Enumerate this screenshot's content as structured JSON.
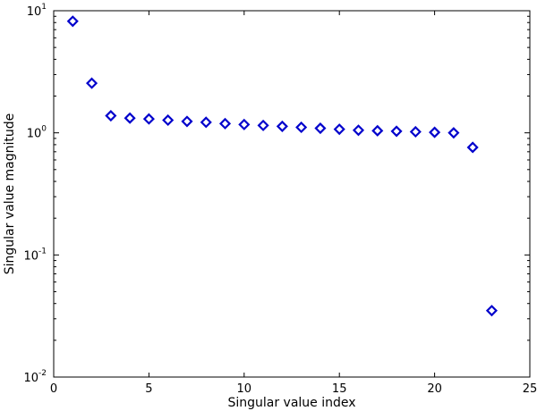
{
  "chart_data": {
    "type": "scatter",
    "title": "",
    "xlabel": "Singular value index",
    "ylabel": "Singular value magnitude",
    "xlim": [
      0,
      25
    ],
    "ylim": [
      0.01,
      10
    ],
    "yscale": "log",
    "grid": false,
    "marker": "diamond",
    "marker_color": "#0000cc",
    "x_ticks": [
      0,
      5,
      10,
      15,
      20,
      25
    ],
    "y_ticks": [
      {
        "value": 10,
        "base": "10",
        "exp": "1"
      },
      {
        "value": 1,
        "base": "10",
        "exp": "0"
      },
      {
        "value": 0.1,
        "base": "10",
        "exp": "-1"
      },
      {
        "value": 0.01,
        "base": "10",
        "exp": "-2"
      }
    ],
    "x": [
      1,
      2,
      3,
      4,
      5,
      6,
      7,
      8,
      9,
      10,
      11,
      12,
      13,
      14,
      15,
      16,
      17,
      18,
      19,
      20,
      21,
      22,
      23
    ],
    "y": [
      8.2,
      2.55,
      1.38,
      1.32,
      1.3,
      1.27,
      1.24,
      1.22,
      1.19,
      1.17,
      1.15,
      1.13,
      1.11,
      1.09,
      1.07,
      1.05,
      1.04,
      1.03,
      1.02,
      1.01,
      1.0,
      0.76,
      0.035
    ]
  }
}
